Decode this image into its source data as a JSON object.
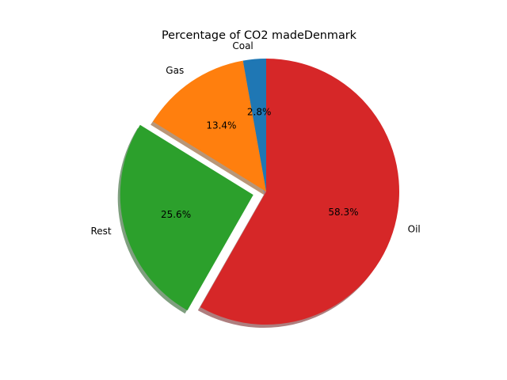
{
  "chart_data": {
    "type": "pie",
    "title": "Percentage of CO2 madeDenmark",
    "categories": [
      "Coal",
      "Gas",
      "Rest",
      "Oil"
    ],
    "values": [
      2.8,
      13.4,
      25.6,
      58.3
    ],
    "percent_labels": [
      "2.8%",
      "13.4%",
      "25.6%",
      "58.3%"
    ],
    "explode": [
      0,
      0,
      0.1,
      0
    ],
    "start_angle_deg": 90,
    "counterclockwise": true,
    "shadow": true,
    "colors": [
      "#1f77b4",
      "#ff7f0e",
      "#2ca02c",
      "#d62728"
    ]
  }
}
